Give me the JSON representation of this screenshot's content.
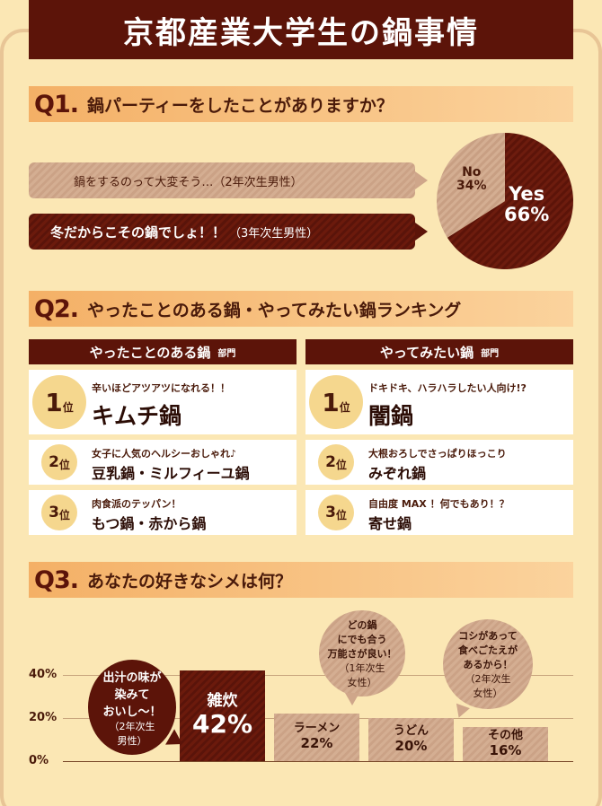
{
  "header": {
    "title": "京都産業大学生の鍋事情"
  },
  "q1": {
    "label": "Q1.",
    "question": "鍋パーティーをしたことがありますか？",
    "comments": [
      {
        "text": "鍋をするのって大変そう…（2年次生男性）"
      },
      {
        "main": "冬だからこその鍋でしょ！！",
        "sub": "（3年次生男性）"
      }
    ]
  },
  "q2": {
    "label": "Q2.",
    "question": "やったことのある鍋・やってみたい鍋ランキング",
    "done": {
      "heading": "やったことのある鍋",
      "heading_suffix": "部門",
      "items": [
        {
          "rank": "1",
          "suffix": "位",
          "sub": "辛いほどアツアツになれる！！",
          "name": "キムチ鍋"
        },
        {
          "rank": "2",
          "suffix": "位",
          "sub": "女子に人気のヘルシーおしゃれ♪",
          "name": "豆乳鍋・ミルフィーユ鍋"
        },
        {
          "rank": "3",
          "suffix": "位",
          "sub": "肉食派のテッパン！",
          "name": "もつ鍋・赤から鍋"
        }
      ]
    },
    "want": {
      "heading": "やってみたい鍋",
      "heading_suffix": "部門",
      "items": [
        {
          "rank": "1",
          "suffix": "位",
          "sub": "ドキドキ、ハラハラしたい人向け!?",
          "name": "闇鍋"
        },
        {
          "rank": "2",
          "suffix": "位",
          "sub": "大根おろしでさっぱりほっこり",
          "name": "みぞれ鍋"
        },
        {
          "rank": "3",
          "suffix": "位",
          "sub": "自由度 MAX ！何でもあり！？",
          "name": "寄せ鍋"
        }
      ]
    }
  },
  "q3": {
    "label": "Q3.",
    "question": "あなたの好きなシメは何？",
    "comments": {
      "zosui": {
        "line1": "出汁の味が",
        "line2": "染みて",
        "line3": "おいし～！",
        "line4": "（2年次生",
        "line5": "男性）"
      },
      "ramen": {
        "line1": "どの鍋",
        "line2": "にでも合う",
        "line3": "万能さが良い！",
        "line4": "（1年次生",
        "line5": "女性）"
      },
      "udon": {
        "line1": "コシがあって",
        "line2": "食べごたえが",
        "line3": "あるから！",
        "line4": "（2年次生",
        "line5": "女性）"
      }
    }
  },
  "chart_data": [
    {
      "type": "pie",
      "title": "鍋パーティーをしたことがありますか？",
      "slices": [
        {
          "label": "Yes",
          "value": 66,
          "display": "66%",
          "color": "#5c1409"
        },
        {
          "label": "No",
          "value": 34,
          "display": "34%",
          "color": "#d4ae92"
        }
      ]
    },
    {
      "type": "bar",
      "title": "あなたの好きなシメは何？",
      "categories": [
        "雑炊",
        "ラーメン",
        "うどん",
        "その他"
      ],
      "values": [
        42,
        22,
        20,
        16
      ],
      "value_labels": [
        "42%",
        "22%",
        "20%",
        "16%"
      ],
      "yticks": [
        "0%",
        "20%",
        "40%"
      ],
      "ylim": [
        0,
        48
      ],
      "colors": {
        "highlight": "#5c1409",
        "normal": "#d4ae92"
      },
      "grid": true
    }
  ]
}
